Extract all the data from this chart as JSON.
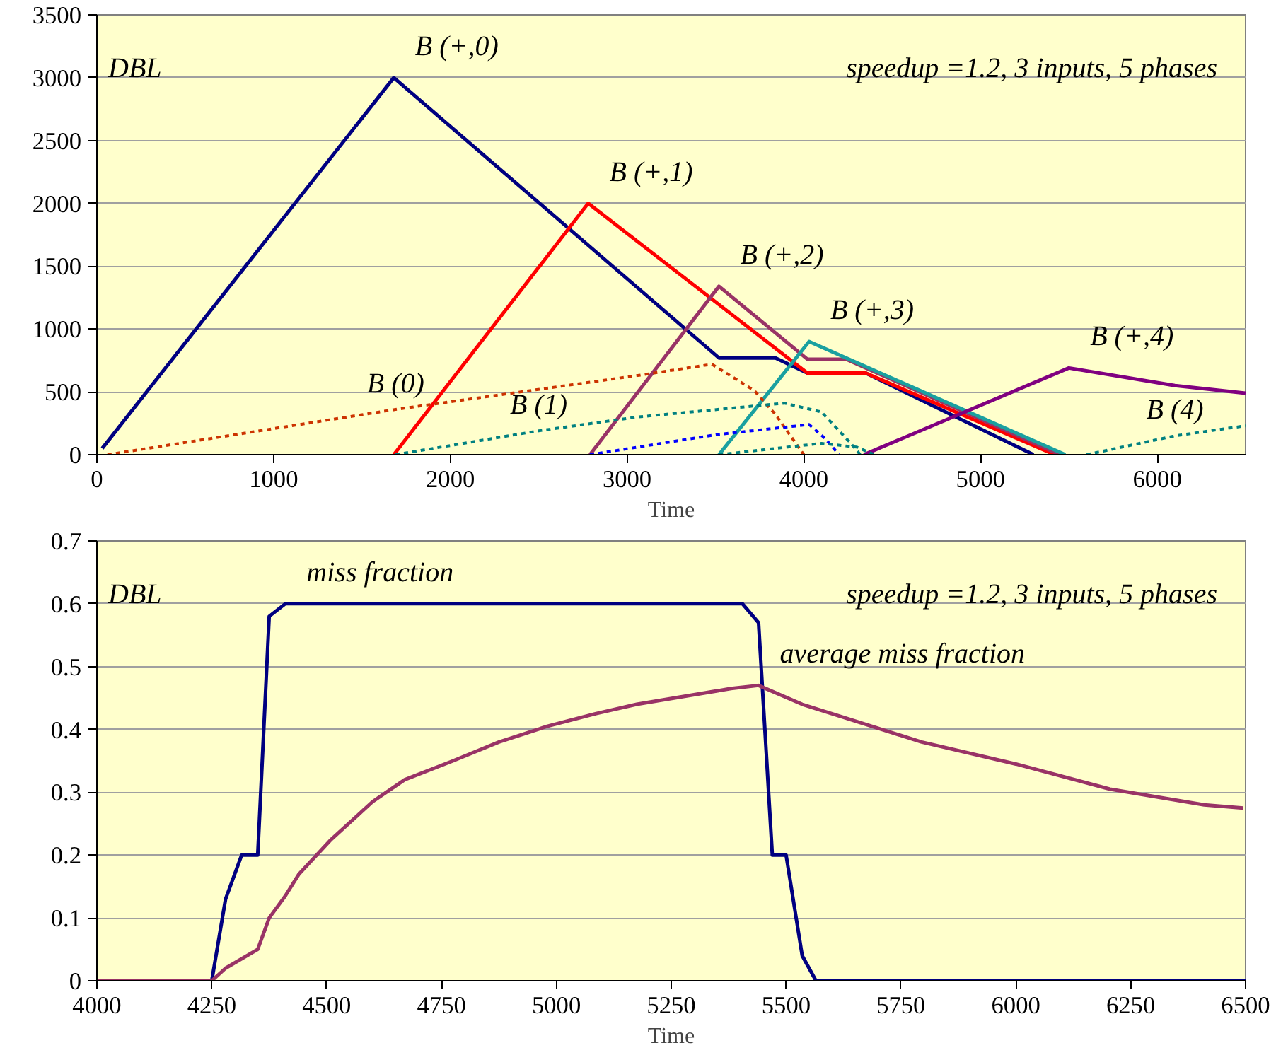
{
  "chart_data": [
    {
      "type": "line",
      "xlabel": "Time",
      "xlim": [
        0,
        6500
      ],
      "xticks": [
        0,
        1000,
        2000,
        3000,
        4000,
        5000,
        6000
      ],
      "ylim": [
        0,
        3500
      ],
      "yticks": [
        0,
        500,
        1000,
        1500,
        2000,
        2500,
        3000,
        3500
      ],
      "grid": "y",
      "legend": false,
      "annotations": [
        "DBL",
        "speedup =1.2, 3 inputs, 5 phases"
      ],
      "series": [
        {
          "name": "B (+,0)",
          "color": "#000080",
          "line_style": "solid",
          "x": [
            30,
            1680,
            3520,
            3840,
            4020,
            4350,
            5300
          ],
          "values": [
            50,
            3000,
            770,
            770,
            650,
            650,
            0
          ]
        },
        {
          "name": "B (+,1)",
          "color": "#ff0000",
          "line_style": "solid",
          "x": [
            1680,
            2780,
            4020,
            4350,
            5420
          ],
          "values": [
            0,
            2000,
            650,
            650,
            0
          ]
        },
        {
          "name": "B (+,2)",
          "color": "#993366",
          "line_style": "solid",
          "x": [
            2790,
            3520,
            4020,
            4240,
            5450
          ],
          "values": [
            0,
            1340,
            760,
            760,
            0
          ]
        },
        {
          "name": "B (+,3)",
          "color": "#1aa0a0",
          "line_style": "solid",
          "x": [
            3520,
            4030,
            5480
          ],
          "values": [
            0,
            900,
            0
          ]
        },
        {
          "name": "B (+,4)",
          "color": "#800080",
          "line_style": "solid",
          "x": [
            4340,
            5500,
            6100,
            6500
          ],
          "values": [
            0,
            690,
            550,
            490
          ]
        },
        {
          "name": "B (0)",
          "color": "#cc3300",
          "line_style": "dotted",
          "x": [
            60,
            1690,
            3060,
            3480,
            3720,
            3840,
            4000
          ],
          "values": [
            0,
            360,
            630,
            720,
            510,
            320,
            0
          ]
        },
        {
          "name": "B (1)",
          "color": "#008080",
          "line_style": "dotted",
          "x": [
            1690,
            2500,
            3060,
            3890,
            4100,
            4260,
            4320
          ],
          "values": [
            0,
            190,
            300,
            410,
            340,
            100,
            0
          ]
        },
        {
          "color": "#0000ff",
          "line_style": "dotted",
          "x": [
            2790,
            3510,
            4030,
            4120,
            4200
          ],
          "values": [
            0,
            160,
            240,
            130,
            0
          ]
        },
        {
          "color": "#008080",
          "line_style": "dotted",
          "x": [
            3520,
            4100,
            4300,
            4400
          ],
          "values": [
            0,
            90,
            60,
            0
          ]
        },
        {
          "name": "B (4)",
          "color": "#008080",
          "line_style": "dotted",
          "x": [
            5600,
            6100,
            6500
          ],
          "values": [
            0,
            150,
            230
          ]
        }
      ]
    },
    {
      "type": "line",
      "xlabel": "Time",
      "xlim": [
        4000,
        6500
      ],
      "xticks": [
        4000,
        4250,
        4500,
        4750,
        5000,
        5250,
        5500,
        5750,
        6000,
        6250,
        6500
      ],
      "ylim": [
        0,
        0.7
      ],
      "yticks": [
        0,
        0.1,
        0.2,
        0.3,
        0.4,
        0.5,
        0.6,
        0.7
      ],
      "grid": "y",
      "legend": false,
      "annotations": [
        "DBL",
        "speedup =1.2, 3 inputs, 5 phases"
      ],
      "series": [
        {
          "name": "miss  fraction",
          "color": "#000080",
          "line_style": "solid",
          "x": [
            4000,
            4250,
            4280,
            4315,
            4350,
            4375,
            4410,
            5405,
            5440,
            5470,
            5500,
            5535,
            5565,
            6500
          ],
          "values": [
            0,
            0,
            0.13,
            0.2,
            0.2,
            0.58,
            0.6,
            0.6,
            0.57,
            0.2,
            0.2,
            0.04,
            0,
            0
          ]
        },
        {
          "name": "average miss fraction",
          "color": "#993366",
          "line_style": "solid",
          "x": [
            4000,
            4250,
            4280,
            4350,
            4375,
            4410,
            4440,
            4510,
            4600,
            4670,
            4775,
            4875,
            4980,
            5085,
            5175,
            5380,
            5440,
            5535,
            5795,
            6000,
            6205,
            6410,
            6495
          ],
          "values": [
            0,
            0,
            0.02,
            0.05,
            0.1,
            0.135,
            0.17,
            0.225,
            0.285,
            0.32,
            0.35,
            0.38,
            0.405,
            0.425,
            0.44,
            0.465,
            0.47,
            0.44,
            0.38,
            0.345,
            0.305,
            0.28,
            0.275
          ]
        }
      ]
    }
  ]
}
